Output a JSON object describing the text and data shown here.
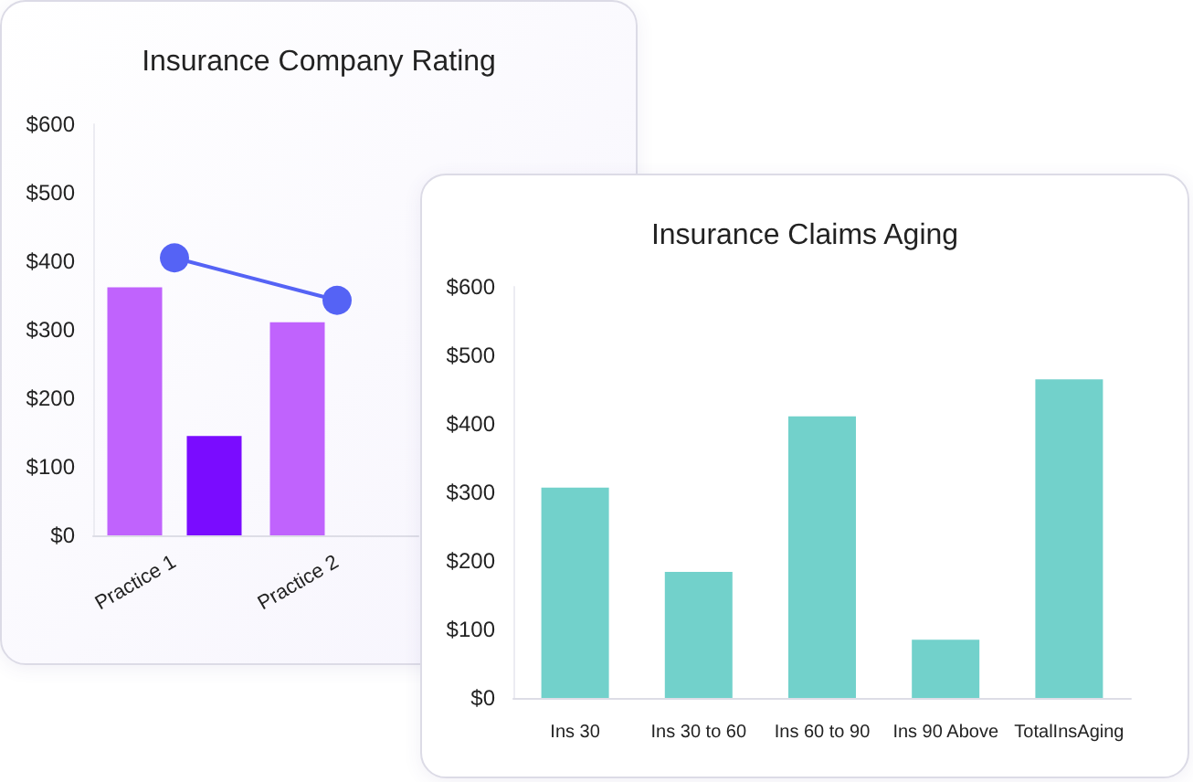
{
  "chart_data": [
    {
      "type": "bar",
      "title": "Insurance Company Rating",
      "categories": [
        "Practice 1",
        "Practice 2"
      ],
      "series": [
        {
          "color": "#c063fd",
          "values": [
            362,
            311
          ]
        },
        {
          "color": "#7a0cff",
          "values": [
            145,
            null
          ]
        },
        {
          "type": "line",
          "color": "#5563f5",
          "values": [
            405,
            343
          ],
          "marker": "circle"
        }
      ],
      "ylim": [
        0,
        600
      ],
      "yticks": [
        {
          "value": 0,
          "label": "$0"
        },
        {
          "value": 100,
          "label": "$100"
        },
        {
          "value": 200,
          "label": "$200"
        },
        {
          "value": 300,
          "label": "$300"
        },
        {
          "value": 400,
          "label": "$400"
        },
        {
          "value": 500,
          "label": "$500"
        },
        {
          "value": 600,
          "label": "$600"
        }
      ],
      "grid": false
    },
    {
      "type": "bar",
      "title": "Insurance Claims Aging",
      "categories": [
        "Ins 30",
        "Ins 30 to 60",
        "Ins 60 to 90",
        "Ins 90 Above",
        "TotalInsAging"
      ],
      "series": [
        {
          "color": "#72d1cb",
          "values": [
            307,
            184,
            411,
            85,
            465
          ]
        }
      ],
      "ylim": [
        0,
        600
      ],
      "yticks": [
        {
          "value": 0,
          "label": "$0"
        },
        {
          "value": 100,
          "label": "$100"
        },
        {
          "value": 200,
          "label": "$200"
        },
        {
          "value": 300,
          "label": "$300"
        },
        {
          "value": 400,
          "label": "$400"
        },
        {
          "value": 500,
          "label": "$500"
        },
        {
          "value": 600,
          "label": "$600"
        }
      ],
      "grid": false
    }
  ]
}
